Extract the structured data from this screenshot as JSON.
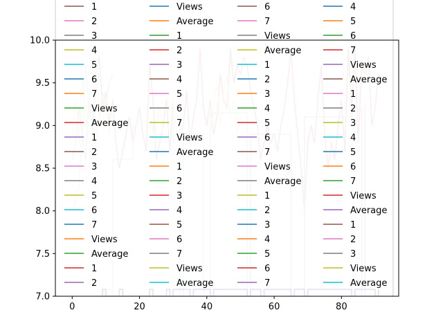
{
  "chart_data": {
    "type": "line",
    "title": "",
    "xlabel": "",
    "ylabel": "",
    "xlim": [
      -5,
      97
    ],
    "ylim": [
      7.0,
      10.0
    ],
    "grid": false,
    "x_ticks": [
      0,
      20,
      40,
      60,
      80
    ],
    "x_tick_labels": [
      "0",
      "20",
      "40",
      "60",
      "80"
    ],
    "y_ticks": [
      7.0,
      7.5,
      8.0,
      8.5,
      9.0,
      9.5,
      10.0
    ],
    "y_tick_labels": [
      "7.0",
      "7.5",
      "8.0",
      "8.5",
      "9.0",
      "9.5",
      "10.0"
    ],
    "legend": {
      "placement": "upper center (overflowing above the plot area)",
      "columns": [
        [
          {
            "label": "1",
            "color": "#8c564b"
          },
          {
            "label": "2",
            "color": "#e377c2"
          },
          {
            "label": "3",
            "color": "#7f7f7f"
          },
          {
            "label": "4",
            "color": "#bcbd22"
          },
          {
            "label": "5",
            "color": "#17becf"
          },
          {
            "label": "6",
            "color": "#1f77b4"
          },
          {
            "label": "7",
            "color": "#ff7f0e"
          },
          {
            "label": "Views",
            "color": "#2ca02c"
          },
          {
            "label": "Average",
            "color": "#d62728"
          },
          {
            "label": "1",
            "color": "#9467bd"
          },
          {
            "label": "2",
            "color": "#8c564b"
          },
          {
            "label": "3",
            "color": "#e377c2"
          },
          {
            "label": "4",
            "color": "#7f7f7f"
          },
          {
            "label": "5",
            "color": "#bcbd22"
          },
          {
            "label": "6",
            "color": "#17becf"
          },
          {
            "label": "7",
            "color": "#1f77b4"
          },
          {
            "label": "Views",
            "color": "#ff7f0e"
          },
          {
            "label": "Average",
            "color": "#2ca02c"
          },
          {
            "label": "1",
            "color": "#d62728"
          },
          {
            "label": "2",
            "color": "#9467bd"
          }
        ],
        [
          {
            "label": "Views",
            "color": "#1f77b4"
          },
          {
            "label": "Average",
            "color": "#ff7f0e"
          },
          {
            "label": "1",
            "color": "#2ca02c"
          },
          {
            "label": "2",
            "color": "#d62728"
          },
          {
            "label": "3",
            "color": "#9467bd"
          },
          {
            "label": "4",
            "color": "#8c564b"
          },
          {
            "label": "5",
            "color": "#e377c2"
          },
          {
            "label": "6",
            "color": "#7f7f7f"
          },
          {
            "label": "7",
            "color": "#bcbd22"
          },
          {
            "label": "Views",
            "color": "#17becf"
          },
          {
            "label": "Average",
            "color": "#1f77b4"
          },
          {
            "label": "1",
            "color": "#ff7f0e"
          },
          {
            "label": "2",
            "color": "#2ca02c"
          },
          {
            "label": "3",
            "color": "#d62728"
          },
          {
            "label": "4",
            "color": "#9467bd"
          },
          {
            "label": "5",
            "color": "#8c564b"
          },
          {
            "label": "6",
            "color": "#e377c2"
          },
          {
            "label": "7",
            "color": "#7f7f7f"
          },
          {
            "label": "Views",
            "color": "#bcbd22"
          },
          {
            "label": "Average",
            "color": "#17becf"
          }
        ],
        [
          {
            "label": "6",
            "color": "#8c564b"
          },
          {
            "label": "7",
            "color": "#e377c2"
          },
          {
            "label": "Views",
            "color": "#7f7f7f"
          },
          {
            "label": "Average",
            "color": "#bcbd22"
          },
          {
            "label": "1",
            "color": "#17becf"
          },
          {
            "label": "2",
            "color": "#1f77b4"
          },
          {
            "label": "3",
            "color": "#ff7f0e"
          },
          {
            "label": "4",
            "color": "#2ca02c"
          },
          {
            "label": "5",
            "color": "#d62728"
          },
          {
            "label": "6",
            "color": "#9467bd"
          },
          {
            "label": "7",
            "color": "#8c564b"
          },
          {
            "label": "Views",
            "color": "#e377c2"
          },
          {
            "label": "Average",
            "color": "#7f7f7f"
          },
          {
            "label": "1",
            "color": "#bcbd22"
          },
          {
            "label": "2",
            "color": "#17becf"
          },
          {
            "label": "3",
            "color": "#1f77b4"
          },
          {
            "label": "4",
            "color": "#ff7f0e"
          },
          {
            "label": "5",
            "color": "#2ca02c"
          },
          {
            "label": "6",
            "color": "#d62728"
          },
          {
            "label": "7",
            "color": "#9467bd"
          }
        ],
        [
          {
            "label": "4",
            "color": "#1f77b4"
          },
          {
            "label": "5",
            "color": "#ff7f0e"
          },
          {
            "label": "6",
            "color": "#2ca02c"
          },
          {
            "label": "7",
            "color": "#d62728"
          },
          {
            "label": "Views",
            "color": "#9467bd"
          },
          {
            "label": "Average",
            "color": "#8c564b"
          },
          {
            "label": "1",
            "color": "#e377c2"
          },
          {
            "label": "2",
            "color": "#7f7f7f"
          },
          {
            "label": "3",
            "color": "#bcbd22"
          },
          {
            "label": "4",
            "color": "#17becf"
          },
          {
            "label": "5",
            "color": "#1f77b4"
          },
          {
            "label": "6",
            "color": "#ff7f0e"
          },
          {
            "label": "7",
            "color": "#2ca02c"
          },
          {
            "label": "Views",
            "color": "#d62728"
          },
          {
            "label": "Average",
            "color": "#9467bd"
          },
          {
            "label": "1",
            "color": "#8c564b"
          },
          {
            "label": "2",
            "color": "#e377c2"
          },
          {
            "label": "3",
            "color": "#7f7f7f"
          },
          {
            "label": "Views",
            "color": "#bcbd22"
          },
          {
            "label": "Average",
            "color": "#17becf"
          }
        ]
      ]
    },
    "series": [
      {
        "color": "#e8b0b0",
        "x": [
          80,
          81,
          82,
          83,
          84,
          85,
          86,
          87,
          88,
          89,
          90,
          91,
          92
        ],
        "y": [
          9.3,
          8.7,
          9.9,
          9.2,
          9.9,
          8.8,
          9.7,
          9.6,
          9.8,
          9.0,
          9.2,
          9.6,
          9.5
        ]
      },
      {
        "color": "#e8b0b0",
        "x": [
          69,
          70,
          71,
          72,
          73,
          74,
          75,
          76,
          77,
          78,
          79,
          80
        ],
        "y": [
          8.0,
          8.8,
          9.0,
          8.8,
          9.3,
          9.7,
          8.9,
          8.5,
          8.8,
          8.6,
          9.0,
          9.3
        ]
      },
      {
        "color": "#e8b0b0",
        "x": [
          58,
          59,
          60,
          61,
          62,
          63,
          64,
          65,
          66,
          67,
          68,
          69
        ],
        "y": [
          9.0,
          8.8,
          8.9,
          8.7,
          9.0,
          9.2,
          9.5,
          9.9,
          9.3,
          8.9,
          8.5,
          8.0
        ]
      },
      {
        "color": "#e8b0b0",
        "x": [
          48,
          49,
          50,
          51,
          52,
          53,
          54,
          55,
          56,
          57,
          58
        ],
        "y": [
          9.5,
          9.7,
          9.6,
          9.8,
          9.7,
          9.4,
          9.2,
          9.0,
          8.6,
          8.8,
          9.0
        ]
      },
      {
        "color": "#e8b0b0",
        "x": [
          36,
          37,
          38,
          39,
          40,
          41,
          42,
          43,
          44,
          45,
          46,
          47,
          48
        ],
        "y": [
          9.1,
          9.3,
          9.9,
          9.2,
          9.0,
          9.3,
          8.9,
          9.1,
          9.6,
          9.3,
          9.2,
          9.9,
          9.5
        ]
      },
      {
        "color": "#e8b0b0",
        "x": [
          22,
          23,
          24,
          25,
          26,
          27,
          28,
          29,
          30,
          31,
          32,
          33,
          34,
          35,
          36
        ],
        "y": [
          8.7,
          9.7,
          9.3,
          8.6,
          8.8,
          9.0,
          9.3,
          8.7,
          9.3,
          8.9,
          8.8,
          9.0,
          9.4,
          8.8,
          9.1
        ]
      },
      {
        "color": "#e8b0b0",
        "x": [
          14,
          15,
          16,
          17,
          18,
          19,
          20,
          21,
          22
        ],
        "y": [
          8.5,
          8.7,
          8.9,
          9.1,
          8.8,
          9.0,
          9.2,
          8.9,
          8.7
        ]
      },
      {
        "color": "#e8b0b0",
        "x": [
          7,
          8,
          9,
          10,
          11,
          12,
          13,
          14
        ],
        "y": [
          9.6,
          9.8,
          9.2,
          9.4,
          9.0,
          9.3,
          8.8,
          8.5
        ]
      },
      {
        "color": "#f1eccd",
        "x": [
          0,
          1,
          2,
          3,
          4,
          5,
          6,
          7,
          8,
          9,
          10,
          11,
          12
        ],
        "y": [
          8.9,
          9.3,
          8.8,
          9.6,
          9.0,
          9.4,
          8.9,
          9.7,
          9.2,
          9.0,
          9.3,
          8.9,
          9.1
        ]
      },
      {
        "color": "#cfe8ea",
        "x": [
          0,
          1,
          2,
          3,
          4,
          5,
          6,
          7,
          8,
          9
        ],
        "y": [
          8.0,
          8.1,
          8.3,
          8.9,
          9.7,
          9.2,
          9.0,
          9.4,
          9.6,
          9.7
        ]
      },
      {
        "color": "#d8d8d8",
        "x": [
          0,
          1,
          2,
          3,
          4,
          5,
          6,
          7,
          8,
          9,
          10,
          11,
          12
        ],
        "y": [
          8.6,
          8.8,
          9.2,
          8.9,
          8.6,
          9.3,
          9.0,
          8.8,
          9.1,
          9.4,
          9.2,
          9.5,
          9.6
        ]
      },
      {
        "color": "#f1eccd",
        "x": [
          24,
          25,
          26,
          27,
          28,
          29,
          30,
          31,
          32
        ],
        "y": [
          8.6,
          9.0,
          9.2,
          8.9,
          8.8,
          9.1,
          9.3,
          8.9,
          8.8
        ]
      },
      {
        "color": "#f1eccd",
        "x": [
          40,
          41,
          42,
          43,
          44,
          45,
          46,
          47,
          48,
          49,
          50
        ],
        "y": [
          8.8,
          8.9,
          9.2,
          9.5,
          9.0,
          9.4,
          9.6,
          9.1,
          9.3,
          8.9,
          9.1
        ]
      },
      {
        "color": "#cfe8ea",
        "step": true,
        "x": [
          12,
          12,
          18,
          18,
          19,
          19,
          24,
          24,
          30,
          30,
          32,
          32,
          33,
          33,
          39,
          39,
          41,
          41,
          52,
          52
        ],
        "y": [
          7.0,
          8.6,
          8.6,
          9.0,
          9.0,
          9.05,
          9.05,
          8.8,
          8.8,
          9.1,
          9.1,
          7.0,
          7.0,
          8.9,
          8.9,
          7.0,
          7.0,
          9.15,
          9.15,
          7.0
        ]
      },
      {
        "color": "#d6d0e8",
        "step": true,
        "x": [
          53,
          53,
          56,
          56,
          64,
          64,
          65,
          65,
          69,
          69,
          70,
          70,
          83,
          83,
          86,
          86,
          87,
          87
        ],
        "y": [
          7.0,
          8.9,
          8.9,
          8.9,
          8.9,
          8.9,
          8.9,
          7.0,
          7.0,
          9.1,
          9.1,
          9.1,
          9.1,
          9.2,
          9.2,
          7.0,
          7.0,
          9.25
        ]
      },
      {
        "color": "#9467bd",
        "step": true,
        "x": [
          9,
          9,
          10,
          10,
          14,
          14,
          15,
          15,
          23,
          23,
          24,
          24,
          28,
          28,
          29,
          29,
          30,
          30,
          35,
          35,
          36,
          36,
          41,
          41,
          42,
          42,
          52,
          52,
          53,
          53,
          56,
          56,
          57,
          57,
          65,
          65,
          66,
          66,
          69,
          69,
          70,
          70,
          83,
          83,
          84,
          84,
          90,
          90,
          91,
          91
        ],
        "y": [
          7.0,
          7.08,
          7.08,
          7.0,
          7.0,
          7.08,
          7.08,
          7.0,
          7.0,
          7.08,
          7.08,
          7.0,
          7.0,
          7.08,
          7.08,
          7.0,
          7.0,
          7.08,
          7.08,
          7.0,
          7.0,
          7.08,
          7.08,
          7.0,
          7.0,
          7.08,
          7.08,
          7.0,
          7.0,
          7.08,
          7.08,
          7.0,
          7.0,
          7.08,
          7.08,
          7.0,
          7.0,
          7.08,
          7.08,
          7.0,
          7.0,
          7.08,
          7.08,
          7.0,
          7.0,
          7.08,
          7.08,
          7.0,
          7.0,
          7.08
        ]
      }
    ]
  }
}
